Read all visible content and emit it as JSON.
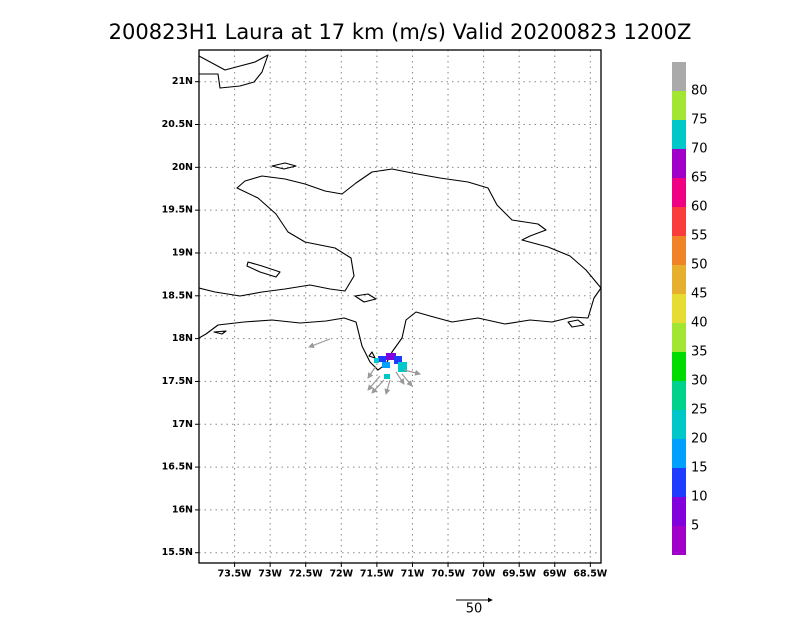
{
  "chart_data": {
    "type": "map",
    "title": "200823H1 Laura at 17 km (m/s) Valid 20200823 1200Z",
    "xlim": [
      -74.0,
      -68.35
    ],
    "ylim": [
      15.38,
      21.37
    ],
    "xticks": [
      {
        "value": -73.5,
        "label": "73.5W"
      },
      {
        "value": -73,
        "label": "73W"
      },
      {
        "value": -72.5,
        "label": "72.5W"
      },
      {
        "value": -72,
        "label": "72W"
      },
      {
        "value": -71.5,
        "label": "71.5W"
      },
      {
        "value": -71,
        "label": "71W"
      },
      {
        "value": -70.5,
        "label": "70.5W"
      },
      {
        "value": -70,
        "label": "70W"
      },
      {
        "value": -69.5,
        "label": "69.5W"
      },
      {
        "value": -69,
        "label": "69W"
      },
      {
        "value": -68.5,
        "label": "68.5W"
      }
    ],
    "yticks": [
      {
        "value": 15.5,
        "label": "15.5N"
      },
      {
        "value": 16,
        "label": "16N"
      },
      {
        "value": 16.5,
        "label": "16.5N"
      },
      {
        "value": 17,
        "label": "17N"
      },
      {
        "value": 17.5,
        "label": "17.5N"
      },
      {
        "value": 18,
        "label": "18N"
      },
      {
        "value": 18.5,
        "label": "18.5N"
      },
      {
        "value": 19,
        "label": "19N"
      },
      {
        "value": 19.5,
        "label": "19.5N"
      },
      {
        "value": 20,
        "label": "20N"
      },
      {
        "value": 20.5,
        "label": "20.5N"
      },
      {
        "value": 21,
        "label": "21N"
      }
    ],
    "grid": true,
    "colorbar": {
      "clim": [
        0,
        85
      ],
      "ticks": [
        5,
        10,
        15,
        20,
        25,
        30,
        35,
        40,
        45,
        50,
        55,
        60,
        65,
        70,
        75,
        80
      ],
      "colors": [
        "#a000c8",
        "#8200dc",
        "#1e3cff",
        "#00a0ff",
        "#00c8c8",
        "#00d28c",
        "#00dc00",
        "#a0e632",
        "#e6dc32",
        "#e6af2d",
        "#f08228",
        "#fa3c3c",
        "#f00082",
        "#a000c8",
        "#00c8c8",
        "#a0e632",
        "#aaaaaa"
      ]
    },
    "reference_vector": 50
  }
}
